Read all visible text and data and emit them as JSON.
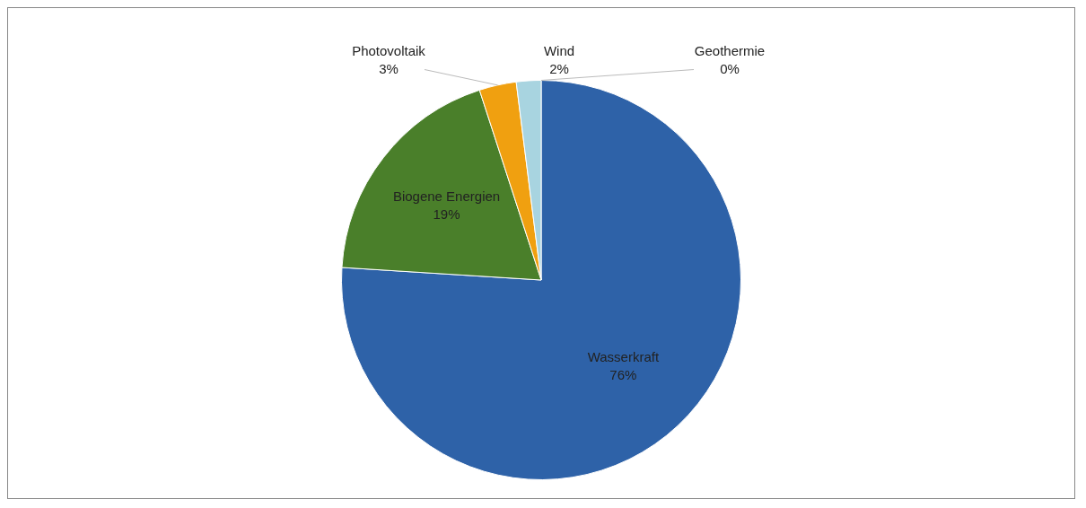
{
  "chart_data": {
    "type": "pie",
    "categories": [
      "Wasserkraft",
      "Biogene Energien",
      "Photovoltaik",
      "Wind",
      "Geothermie"
    ],
    "values": [
      76,
      19,
      3,
      2,
      0
    ],
    "colors": [
      "#2e62a8",
      "#4a7f2a",
      "#f0a010",
      "#a8d4e0",
      "#c0504d"
    ],
    "value_labels": [
      "76%",
      "19%",
      "3%",
      "2%",
      "0%"
    ],
    "legend": false
  }
}
